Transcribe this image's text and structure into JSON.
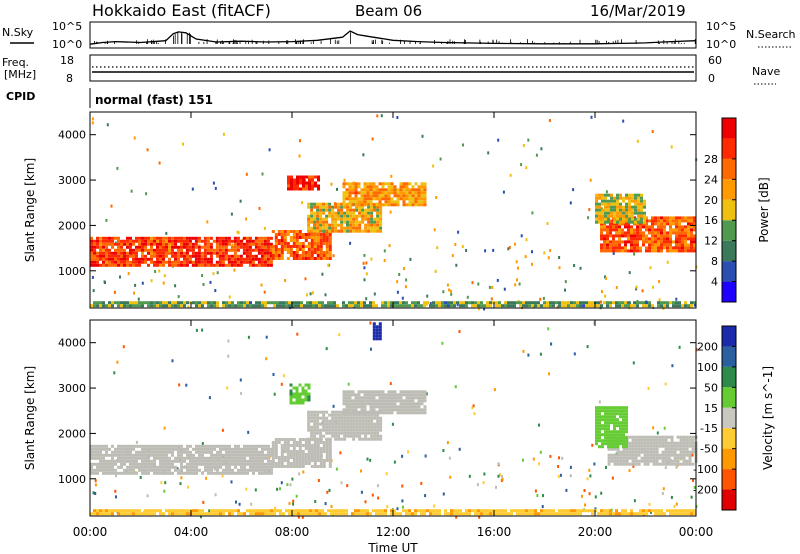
{
  "header": {
    "station": "Hokkaido East (fitACF)",
    "beam": "Beam 06",
    "date": "16/Mar/2019"
  },
  "strips": {
    "nsky_label": "N.Sky",
    "nsearch_label": "N.Search",
    "freq_label_top": "Freq.",
    "freq_label_unit": "[MHz]",
    "nave_label": "Nave",
    "cpid_label": "CPID",
    "cpid_text": "normal (fast) 151",
    "noise_ticks_left": [
      "10^5",
      "10^0"
    ],
    "noise_ticks_right": [
      "10^5",
      "10^0"
    ],
    "freq_ticks_left": [
      "18",
      "8"
    ],
    "nave_ticks_right": [
      "60",
      "0"
    ]
  },
  "colors": {
    "power_scale": [
      "#1f00ff",
      "#2a4fb0",
      "#3a7a5a",
      "#4f9a4f",
      "#f0c010",
      "#ff9a00",
      "#ff6a00",
      "#ff2a00",
      "#ee0000"
    ],
    "velocity_scale": [
      "#1a2aaa",
      "#2a5fa0",
      "#2e8a4a",
      "#66cc33",
      "#c8c8c0",
      "#ffcc33",
      "#ff9900",
      "#ff5500",
      "#e00000"
    ],
    "ground_scatter": "#bdbdb5"
  },
  "chart_data": [
    {
      "type": "heatmap",
      "title": "Power",
      "xlabel": "Time UT",
      "ylabel": "Slant Range [km]",
      "x_ticks": [
        "00:00",
        "04:00",
        "08:00",
        "12:00",
        "16:00",
        "20:00",
        "00:00"
      ],
      "x_range_hours": [
        0,
        24
      ],
      "y_ticks": [
        "1000",
        "2000",
        "3000",
        "4000"
      ],
      "y_range_km": [
        180,
        4500
      ],
      "colorbar": {
        "label": "Power [dB]",
        "ticks": [
          "4",
          "8",
          "12",
          "16",
          "20",
          "24",
          "28"
        ],
        "range": [
          0,
          32
        ]
      },
      "regions": [
        {
          "t0": 0.0,
          "t1": 3.8,
          "r0": 1150,
          "r1": 1750,
          "value": 26
        },
        {
          "t0": 3.8,
          "t1": 7.2,
          "r0": 1150,
          "r1": 1750,
          "value": 27
        },
        {
          "t0": 7.2,
          "t1": 9.5,
          "r0": 1250,
          "r1": 1900,
          "value": 24
        },
        {
          "t0": 8.6,
          "t1": 11.5,
          "r0": 1900,
          "r1": 2500,
          "value": 18
        },
        {
          "t0": 10.0,
          "t1": 13.3,
          "r0": 2450,
          "r1": 2950,
          "value": 20
        },
        {
          "t0": 7.8,
          "t1": 9.0,
          "r0": 2800,
          "r1": 3100,
          "value": 28
        },
        {
          "t0": 20.2,
          "t1": 24.0,
          "r0": 1450,
          "r1": 2200,
          "value": 24
        },
        {
          "t0": 20.0,
          "t1": 22.0,
          "r0": 2100,
          "r1": 2700,
          "value": 16
        },
        {
          "t0": 0.0,
          "t1": 24.0,
          "r0": 200,
          "r1": 330,
          "value": 12
        }
      ]
    },
    {
      "type": "heatmap",
      "title": "Velocity",
      "xlabel": "Time UT",
      "ylabel": "Slant Range [km]",
      "x_ticks": [
        "00:00",
        "04:00",
        "08:00",
        "12:00",
        "16:00",
        "20:00",
        "00:00"
      ],
      "x_range_hours": [
        0,
        24
      ],
      "y_ticks": [
        "1000",
        "2000",
        "3000",
        "4000"
      ],
      "y_range_km": [
        180,
        4500
      ],
      "colorbar": {
        "label": "Velocity [m s^-1]",
        "ticks": [
          "200",
          "100",
          "50",
          "15",
          "-15",
          "-50",
          "-100",
          "-200"
        ],
        "range": [
          -250,
          250
        ]
      },
      "regions": [
        {
          "t0": 0.0,
          "t1": 7.2,
          "r0": 1150,
          "r1": 1750,
          "value": 0
        },
        {
          "t0": 7.2,
          "t1": 9.5,
          "r0": 1250,
          "r1": 1900,
          "value": 0
        },
        {
          "t0": 8.6,
          "t1": 11.5,
          "r0": 1900,
          "r1": 2500,
          "value": 0
        },
        {
          "t0": 10.0,
          "t1": 13.3,
          "r0": 2450,
          "r1": 2950,
          "value": 0
        },
        {
          "t0": 7.9,
          "t1": 8.7,
          "r0": 2700,
          "r1": 3100,
          "value": 40
        },
        {
          "t0": 20.5,
          "t1": 24.0,
          "r0": 1350,
          "r1": 1950,
          "value": 0
        },
        {
          "t0": 20.0,
          "t1": 21.3,
          "r0": 1700,
          "r1": 2600,
          "value": 30
        },
        {
          "t0": 11.2,
          "t1": 11.5,
          "r0": 4100,
          "r1": 4450,
          "value": 220
        },
        {
          "t0": 0.0,
          "t1": 24.0,
          "r0": 200,
          "r1": 330,
          "value": -40
        }
      ]
    },
    {
      "type": "line",
      "title": "N.Sky",
      "x_range_hours": [
        0,
        24
      ],
      "series": [
        {
          "name": "N.Sky",
          "x": [
            0,
            0.5,
            1,
            2,
            3,
            3.3,
            3.5,
            3.8,
            4.2,
            5,
            6,
            7,
            8,
            9,
            10,
            10.3,
            10.6,
            11,
            12,
            13,
            14,
            16,
            18,
            20,
            21,
            22,
            23,
            24
          ],
          "y": [
            0.4,
            0.8,
            1.0,
            0.8,
            1.2,
            2.8,
            3.2,
            3.0,
            1.6,
            0.9,
            1.1,
            0.9,
            1.0,
            1.3,
            2.0,
            3.4,
            2.6,
            2.2,
            1.3,
            1.0,
            0.8,
            0.6,
            0.5,
            0.5,
            0.6,
            0.7,
            1.0,
            1.2
          ]
        }
      ]
    }
  ]
}
